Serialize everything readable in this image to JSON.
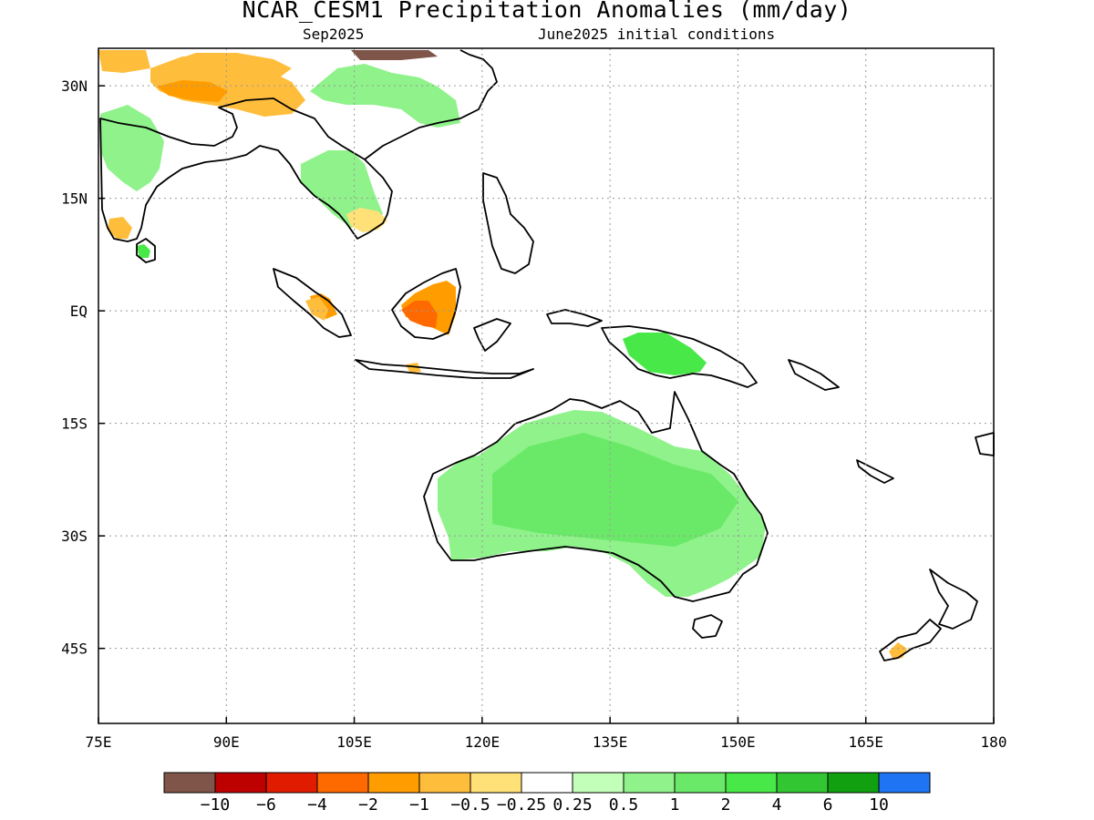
{
  "header": {
    "title": "NCAR_CESM1 Precipitation Anomalies (mm/day)",
    "subtitle_left": "Sep2025",
    "subtitle_right": "June2025 initial conditions"
  },
  "map": {
    "lon_range": [
      75,
      180
    ],
    "lat_range": [
      -55,
      35
    ],
    "lon_ticks": [
      {
        "value": 75,
        "label": "75E"
      },
      {
        "value": 90,
        "label": "90E"
      },
      {
        "value": 105,
        "label": "105E"
      },
      {
        "value": 120,
        "label": "120E"
      },
      {
        "value": 135,
        "label": "135E"
      },
      {
        "value": 150,
        "label": "150E"
      },
      {
        "value": 165,
        "label": "165E"
      },
      {
        "value": 180,
        "label": "180"
      }
    ],
    "lat_ticks": [
      {
        "value": 30,
        "label": "30N"
      },
      {
        "value": 15,
        "label": "15N"
      },
      {
        "value": 0,
        "label": "EQ"
      },
      {
        "value": -15,
        "label": "15S"
      },
      {
        "value": -30,
        "label": "30S"
      },
      {
        "value": -45,
        "label": "45S"
      }
    ],
    "grid": "dotted",
    "coastline_color": "#000000"
  },
  "anomaly_regions": [
    {
      "name": "Australia interior",
      "lon_range": [
        122,
        145
      ],
      "lat_range": [
        -38,
        -15
      ],
      "anomaly": 0.5
    },
    {
      "name": "New Guinea",
      "lon_range": [
        138,
        146
      ],
      "lat_range": [
        -8,
        -3
      ],
      "anomaly": 2
    },
    {
      "name": "Borneo",
      "lon_range": [
        110,
        119
      ],
      "lat_range": [
        -3,
        4
      ],
      "anomaly": -2
    },
    {
      "name": "Sumatra",
      "lon_range": [
        99,
        104
      ],
      "lat_range": [
        -2,
        5
      ],
      "anomaly": -1
    },
    {
      "name": "Indochina",
      "lon_range": [
        101,
        110
      ],
      "lat_range": [
        11,
        23
      ],
      "anomaly": 0.5
    },
    {
      "name": "Tibet / Himalaya",
      "lon_range": [
        82,
        98
      ],
      "lat_range": [
        26,
        35
      ],
      "anomaly": -1
    },
    {
      "name": "India",
      "lon_range": [
        75,
        90
      ],
      "lat_range": [
        10,
        28
      ],
      "anomaly": 0.5
    },
    {
      "name": "East China",
      "lon_range": [
        104,
        120
      ],
      "lat_range": [
        25,
        35
      ],
      "anomaly": 0.5
    },
    {
      "name": "South Island NZ",
      "lon_range": [
        168,
        171
      ],
      "lat_range": [
        -46,
        -44
      ],
      "anomaly": -0.5
    }
  ],
  "colorbar": {
    "colors": [
      "#7f5449",
      "#bd0000",
      "#e01b00",
      "#ff6a00",
      "#ff9d00",
      "#ffbd3c",
      "#ffe178",
      "#ffffff",
      "#c2ffb8",
      "#8ff28a",
      "#6ae968",
      "#47e847",
      "#33c633",
      "#10a010",
      "#1e74f2"
    ],
    "labels": [
      "−10",
      "−6",
      "−4",
      "−2",
      "−1",
      "−0.5",
      "−0.25",
      "0.25",
      "0.5",
      "1",
      "2",
      "4",
      "6",
      "10"
    ]
  }
}
